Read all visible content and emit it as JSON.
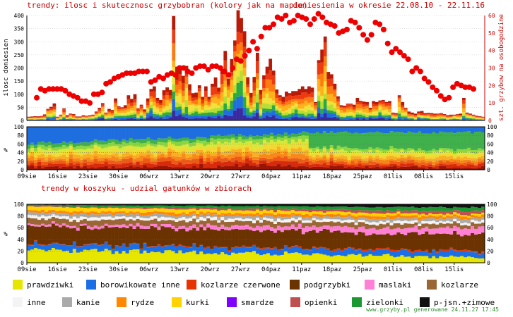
{
  "chart_data": [
    {
      "type": "bar",
      "title": "trendy: ilosc i skutecznosc grzybobran (kolory jak na mapie)",
      "subtitle": "doniesienia w okresie 22.08.10 - 22.11.16",
      "ylabel": "ilosc doniesien",
      "y2label": "szt. grzybow na osobogodzine",
      "ylim": [
        0,
        400
      ],
      "y2lim": [
        0,
        60
      ],
      "yticks": [
        "0",
        "50",
        "100",
        "150",
        "200",
        "250",
        "300",
        "350",
        "400"
      ],
      "y2ticks": [
        "0",
        "10",
        "20",
        "30",
        "40",
        "50",
        "60"
      ],
      "bar_totals": [
        14,
        15,
        16,
        16,
        17,
        23,
        44,
        52,
        65,
        14,
        22,
        46,
        20,
        26,
        24,
        15,
        15,
        20,
        18,
        20,
        22,
        34,
        48,
        66,
        30,
        44,
        40,
        84,
        54,
        50,
        58,
        96,
        82,
        100,
        46,
        60,
        42,
        84,
        120,
        130,
        86,
        78,
        115,
        126,
        116,
        398,
        205,
        196,
        170,
        208,
        138,
        104,
        106,
        134,
        90,
        130,
        90,
        140,
        164,
        125,
        196,
        265,
        160,
        234,
        305,
        420,
        390,
        340,
        165,
        105,
        166,
        258,
        116,
        172,
        205,
        235,
        190,
        118,
        96,
        90,
        110,
        104,
        112,
        112,
        120,
        130,
        120,
        130,
        125,
        70,
        230,
        270,
        320,
        185,
        176,
        140,
        92,
        58,
        56,
        64,
        64,
        60,
        86,
        75,
        72,
        70,
        48,
        74,
        70,
        76,
        78,
        70,
        74,
        30,
        28,
        96,
        70,
        48,
        34,
        30,
        26,
        34,
        36,
        28,
        29,
        28,
        26,
        26,
        28,
        24,
        20,
        22,
        22,
        24,
        26,
        86,
        30,
        26,
        22,
        18,
        16,
        14
      ],
      "efficiency": [
        13,
        18,
        17,
        18,
        18,
        18,
        18,
        17,
        15,
        14,
        13,
        11,
        11,
        10,
        15,
        15,
        16,
        21,
        22,
        24,
        25,
        26,
        27,
        27,
        27,
        28,
        28,
        28,
        22,
        23,
        25,
        24,
        26,
        27,
        26,
        30,
        30,
        28,
        27,
        30,
        31,
        31,
        29,
        31,
        31,
        30,
        28,
        26,
        30,
        35,
        34,
        37,
        40,
        45,
        41,
        48,
        53,
        53,
        55,
        59,
        58,
        60,
        56,
        57,
        60,
        59,
        58,
        55,
        58,
        61,
        59,
        56,
        55,
        54,
        50,
        51,
        52,
        57,
        56,
        53,
        49,
        46,
        49,
        56,
        55,
        52,
        44,
        39,
        41,
        39,
        37,
        35,
        28,
        30,
        28,
        24,
        22,
        19,
        17,
        14,
        12,
        13,
        19,
        21,
        20,
        19,
        19,
        18
      ],
      "xticks": [
        "09sie",
        "16sie",
        "23sie",
        "30sie",
        "06wrz",
        "13wrz",
        "20wrz",
        "27wrz",
        "04paz",
        "11paz",
        "18paz",
        "25paz",
        "01lis",
        "08lis",
        "15lis"
      ]
    },
    {
      "type": "area",
      "ylabel": "%",
      "ylim": [
        0,
        100
      ],
      "yticks": [
        "0",
        "20",
        "40",
        "60",
        "80",
        "100"
      ],
      "xticks": [
        "09sie",
        "16sie",
        "23sie",
        "30sie",
        "06wrz",
        "13wrz",
        "20wrz",
        "27wrz",
        "04paz",
        "11paz",
        "18paz",
        "25paz",
        "01lis",
        "08lis",
        "15lis"
      ]
    },
    {
      "type": "area",
      "title": "trendy w koszyku - udzial gatunków w zbiorach",
      "ylabel": "%",
      "ylim": [
        0,
        100
      ],
      "yticks": [
        "0",
        "20",
        "40",
        "60",
        "80",
        "100"
      ],
      "xticks": [
        "09sie",
        "16sie",
        "23sie",
        "30sie",
        "06wrz",
        "13wrz",
        "20wrz",
        "27wrz",
        "04paz",
        "11paz",
        "18paz",
        "25paz",
        "01lis",
        "08lis",
        "15lis"
      ],
      "series": [
        {
          "name": "prawdziwki",
          "color": "#e6e600",
          "start": 22,
          "end": 8
        },
        {
          "name": "borowikowate inne",
          "color": "#1a6fe6",
          "start": 10,
          "end": 8
        },
        {
          "name": "kozlarze czerwone",
          "color": "#e63300",
          "start": 1,
          "end": 2
        },
        {
          "name": "podgrzybki",
          "color": "#6b3300",
          "start": 30,
          "end": 25
        },
        {
          "name": "maslaki",
          "color": "#ff80d5",
          "start": 3,
          "end": 10
        },
        {
          "name": "kozlarze",
          "color": "#9a6633",
          "start": 9,
          "end": 6
        },
        {
          "name": "inne",
          "color": "#f4f4f4",
          "start": 5,
          "end": 4
        },
        {
          "name": "kanie",
          "color": "#aaaaaa",
          "start": 5,
          "end": 4
        },
        {
          "name": "rydze",
          "color": "#ff8800",
          "start": 4,
          "end": 4
        },
        {
          "name": "kurki",
          "color": "#ffd200",
          "start": 7,
          "end": 3
        },
        {
          "name": "smardze",
          "color": "#8000ff",
          "start": 0,
          "end": 0
        },
        {
          "name": "opienki",
          "color": "#c05050",
          "start": 1,
          "end": 5
        },
        {
          "name": "zielonki",
          "color": "#1a9933",
          "start": 2,
          "end": 6
        },
        {
          "name": "p-jsn.+zimowe",
          "color": "#111111",
          "start": 1,
          "end": 5
        }
      ]
    }
  ],
  "legend": [
    {
      "label": "prawdziwki",
      "color": "#e6e600"
    },
    {
      "label": "borowikowate inne",
      "color": "#1a6fe6"
    },
    {
      "label": "kozlarze czerwone",
      "color": "#e63300"
    },
    {
      "label": "podgrzybki",
      "color": "#6b3300"
    },
    {
      "label": "maslaki",
      "color": "#ff80d5"
    },
    {
      "label": "kozlarze",
      "color": "#9a6633"
    },
    {
      "label": "inne",
      "color": "#f4f4f4"
    },
    {
      "label": "kanie",
      "color": "#aaaaaa"
    },
    {
      "label": "rydze",
      "color": "#ff8800"
    },
    {
      "label": "kurki",
      "color": "#ffd200"
    },
    {
      "label": "smardze",
      "color": "#8000ff"
    },
    {
      "label": "opienki",
      "color": "#c05050"
    },
    {
      "label": "zielonki",
      "color": "#1a9933"
    },
    {
      "label": "p-jsn.+zimowe",
      "color": "#111111"
    }
  ],
  "footer": "www.grzyby.pl generowane 24.11.27 17:45"
}
